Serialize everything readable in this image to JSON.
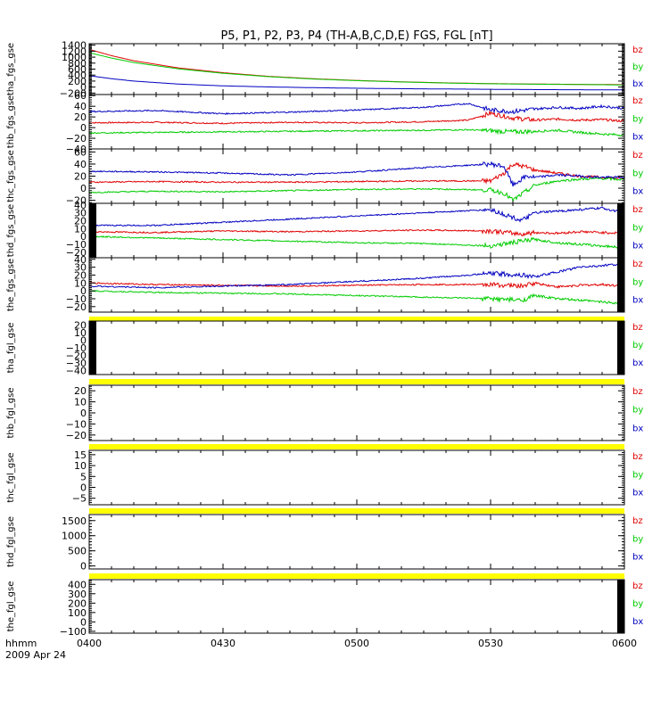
{
  "chart_data": {
    "type": "line",
    "title": "P5, P1, P2, P3, P4 (TH-A,B,C,D,E) FGS, FGL [nT]",
    "x_tick_labels": [
      "0400",
      "0430",
      "0500",
      "0530",
      "0600"
    ],
    "x_label_line1": "hhmm",
    "x_label_line2": "2009 Apr 24",
    "legend_labels": [
      "bz",
      "by",
      "bx"
    ],
    "colors": {
      "bz": "#e00000",
      "by": "#00cc00",
      "bx": "#0000c0",
      "data_gap": "#ffff00"
    },
    "panels": [
      {
        "ylabel": "tha_fgs_gse",
        "ylim": [
          -250,
          1450
        ],
        "yticks": [
          "1400",
          "1200",
          "1000",
          "800",
          "600",
          "400",
          "200",
          "0",
          "−200"
        ],
        "yticks_values": [
          1400,
          1200,
          1000,
          800,
          600,
          400,
          200,
          0,
          -200
        ],
        "series": [
          {
            "name": "bz",
            "x": [
              0,
              5,
              10,
              20,
              30,
              40,
              50,
              60,
              70,
              80,
              90,
              100,
              110,
              120
            ],
            "y": [
              1260,
              1050,
              880,
              640,
              480,
              360,
              280,
              220,
              175,
              140,
              115,
              100,
              90,
              80
            ]
          },
          {
            "name": "by",
            "x": [
              0,
              5,
              10,
              20,
              30,
              40,
              50,
              60,
              70,
              80,
              90,
              100,
              110,
              120
            ],
            "y": [
              1150,
              970,
              820,
              610,
              460,
              350,
              270,
              215,
              170,
              135,
              110,
              95,
              85,
              70
            ]
          },
          {
            "name": "bx",
            "x": [
              0,
              5,
              10,
              20,
              30,
              40,
              50,
              60,
              70,
              80,
              90,
              100,
              110,
              120
            ],
            "y": [
              380,
              280,
              200,
              100,
              40,
              5,
              -20,
              -40,
              -55,
              -65,
              -75,
              -85,
              -90,
              -95
            ]
          }
        ]
      },
      {
        "ylabel": "thb_fgs_gse",
        "ylim": [
          -40,
          62
        ],
        "yticks": [
          "60",
          "40",
          "20",
          "0",
          "−20",
          "−40"
        ],
        "yticks_values": [
          60,
          40,
          20,
          0,
          -20,
          -40
        ],
        "series": [
          {
            "name": "bz",
            "x": [
              0,
              15,
              30,
              45,
              60,
              75,
              85,
              90,
              95,
              100,
              105,
              110,
              115,
              120
            ],
            "y": [
              9,
              10,
              8,
              10,
              9,
              11,
              14,
              27,
              18,
              14,
              16,
              14,
              15,
              12
            ]
          },
          {
            "name": "by",
            "x": [
              0,
              15,
              30,
              45,
              60,
              75,
              85,
              90,
              95,
              100,
              105,
              110,
              115,
              120
            ],
            "y": [
              -10,
              -9,
              -8,
              -7,
              -6,
              -5,
              -4,
              -6,
              -8,
              -7,
              -5,
              -9,
              -12,
              -14
            ]
          },
          {
            "name": "bx",
            "x": [
              0,
              15,
              30,
              45,
              60,
              75,
              85,
              90,
              95,
              100,
              105,
              110,
              115,
              120
            ],
            "y": [
              30,
              32,
              26,
              29,
              33,
              38,
              45,
              33,
              30,
              35,
              38,
              36,
              40,
              36
            ]
          }
        ]
      },
      {
        "ylabel": "thc_fgs_gse",
        "ylim": [
          -25,
          65
        ],
        "yticks": [
          "60",
          "40",
          "20",
          "0",
          "−20"
        ],
        "yticks_values": [
          60,
          40,
          20,
          0,
          -20
        ],
        "series": [
          {
            "name": "bz",
            "x": [
              0,
              15,
              30,
              45,
              60,
              75,
              90,
              93,
              95,
              98,
              100,
              105,
              110,
              115,
              120
            ],
            "y": [
              10,
              11,
              10,
              10,
              11,
              12,
              12,
              25,
              40,
              35,
              30,
              25,
              20,
              18,
              16
            ]
          },
          {
            "name": "by",
            "x": [
              0,
              15,
              30,
              45,
              60,
              75,
              90,
              93,
              95,
              98,
              100,
              105,
              110,
              115,
              120
            ],
            "y": [
              -7,
              -5,
              -6,
              -4,
              -2,
              -1,
              -3,
              -8,
              -20,
              -5,
              5,
              12,
              15,
              16,
              14
            ]
          },
          {
            "name": "bx",
            "x": [
              0,
              15,
              30,
              45,
              60,
              75,
              90,
              93,
              95,
              98,
              100,
              105,
              110,
              115,
              120
            ],
            "y": [
              28,
              27,
              25,
              22,
              27,
              34,
              40,
              36,
              5,
              20,
              18,
              22,
              20,
              18,
              18
            ]
          }
        ]
      },
      {
        "ylabel": "thd_fgs_gse",
        "ylim": [
          -27,
          42
        ],
        "yticks": [
          "40",
          "30",
          "20",
          "10",
          "0",
          "−10",
          "−20"
        ],
        "yticks_values": [
          40,
          30,
          20,
          10,
          0,
          -10,
          -20
        ],
        "series": [
          {
            "name": "bz",
            "x": [
              0,
              15,
              30,
              45,
              60,
              75,
              90,
              97,
              100,
              105,
              110,
              115,
              120
            ],
            "y": [
              6,
              5,
              7,
              6,
              7,
              8,
              7,
              3,
              5,
              4,
              6,
              5,
              4
            ]
          },
          {
            "name": "by",
            "x": [
              0,
              15,
              30,
              45,
              60,
              75,
              90,
              97,
              100,
              105,
              110,
              115,
              120
            ],
            "y": [
              0,
              -2,
              -4,
              -6,
              -8,
              -9,
              -12,
              -6,
              -4,
              -8,
              -10,
              -12,
              -14
            ]
          },
          {
            "name": "bx",
            "x": [
              0,
              15,
              30,
              45,
              60,
              75,
              90,
              97,
              100,
              105,
              110,
              115,
              120
            ],
            "y": [
              14,
              14,
              18,
              22,
              26,
              30,
              34,
              20,
              30,
              32,
              34,
              36,
              30
            ]
          }
        ]
      },
      {
        "ylabel": "the_fgs_gse",
        "ylim": [
          -27,
          42
        ],
        "yticks": [
          "40",
          "30",
          "20",
          "10",
          "0",
          "−10",
          "−20"
        ],
        "yticks_values": [
          40,
          30,
          20,
          10,
          0,
          -10,
          -20
        ],
        "series": [
          {
            "name": "bz",
            "x": [
              0,
              15,
              30,
              45,
              60,
              75,
              90,
              97,
              100,
              105,
              110,
              115,
              120
            ],
            "y": [
              10,
              8,
              7,
              6,
              7,
              8,
              8,
              6,
              10,
              5,
              7,
              8,
              6
            ]
          },
          {
            "name": "by",
            "x": [
              0,
              15,
              30,
              45,
              60,
              75,
              90,
              97,
              100,
              105,
              110,
              115,
              120
            ],
            "y": [
              0,
              -2,
              -3,
              -4,
              -6,
              -8,
              -10,
              -12,
              -6,
              -10,
              -12,
              -14,
              -16
            ]
          },
          {
            "name": "bx",
            "x": [
              0,
              15,
              30,
              45,
              60,
              75,
              90,
              97,
              100,
              105,
              110,
              115,
              120
            ],
            "y": [
              6,
              4,
              6,
              8,
              12,
              16,
              22,
              20,
              18,
              24,
              30,
              32,
              34
            ]
          }
        ]
      },
      {
        "ylabel": "tha_fgl_gse",
        "ylim": [
          -45,
          25
        ],
        "yticks": [
          "20",
          "10",
          "0",
          "−10",
          "−20",
          "−30",
          "−40"
        ],
        "yticks_values": [
          20,
          10,
          0,
          -10,
          -20,
          -30,
          -40
        ],
        "series": []
      },
      {
        "ylabel": "thb_fgl_gse",
        "ylim": [
          -25,
          25
        ],
        "yticks": [
          "20",
          "10",
          "0",
          "−10",
          "−20"
        ],
        "yticks_values": [
          20,
          10,
          0,
          -10,
          -20
        ],
        "series": []
      },
      {
        "ylabel": "thc_fgl_gse",
        "ylim": [
          -8,
          17
        ],
        "yticks": [
          "15",
          "10",
          "5",
          "0",
          "−5"
        ],
        "yticks_values": [
          15,
          10,
          5,
          0,
          -5
        ],
        "series": []
      },
      {
        "ylabel": "thd_fgl_gse",
        "ylim": [
          -100,
          1700
        ],
        "yticks": [
          "1500",
          "1000",
          "500",
          "0"
        ],
        "yticks_values": [
          1500,
          1000,
          500,
          0
        ],
        "series": []
      },
      {
        "ylabel": "the_fgl_gse",
        "ylim": [
          -120,
          450
        ],
        "yticks": [
          "400",
          "300",
          "200",
          "100",
          "0",
          "−100"
        ],
        "yticks_values": [
          400,
          300,
          200,
          100,
          0,
          -100
        ],
        "series": []
      }
    ]
  }
}
